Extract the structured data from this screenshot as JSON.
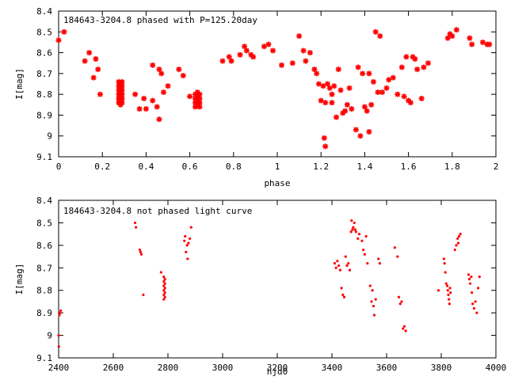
{
  "colors": {
    "marker": "#ff0000",
    "axis": "#000000",
    "background": "#ffffff"
  },
  "chart_data": [
    {
      "type": "scatter",
      "title": "184643-3204.8 phased with P=125.20day",
      "xlabel": "phase",
      "ylabel": "I[mag]",
      "xlim": [
        0,
        2
      ],
      "ylim": [
        9.1,
        8.4
      ],
      "y_inverted": true,
      "grid": false,
      "marker": "star",
      "xticks": [
        0,
        0.2,
        0.4,
        0.6,
        0.8,
        1,
        1.2,
        1.4,
        1.6,
        1.8,
        2
      ],
      "xtick_labels": [
        "0",
        "0.2",
        "0.4",
        "0.6",
        "0.8",
        "1",
        "1.2",
        "1.4",
        "1.6",
        "1.8",
        "2"
      ],
      "yticks": [
        8.4,
        8.5,
        8.6,
        8.7,
        8.8,
        8.9,
        9.0,
        9.1
      ],
      "ytick_labels": [
        "8.4",
        "8.5",
        "8.6",
        "8.7",
        "8.8",
        "8.9",
        "9",
        "9.1"
      ],
      "points": [
        [
          0.0,
          8.54
        ],
        [
          0.025,
          8.5
        ],
        [
          0.12,
          8.64
        ],
        [
          0.14,
          8.6
        ],
        [
          0.16,
          8.72
        ],
        [
          0.17,
          8.63
        ],
        [
          0.18,
          8.68
        ],
        [
          0.19,
          8.8
        ],
        [
          0.275,
          8.74
        ],
        [
          0.275,
          8.76
        ],
        [
          0.275,
          8.78
        ],
        [
          0.275,
          8.8
        ],
        [
          0.275,
          8.82
        ],
        [
          0.275,
          8.84
        ],
        [
          0.283,
          8.75
        ],
        [
          0.283,
          8.77
        ],
        [
          0.283,
          8.79
        ],
        [
          0.283,
          8.81
        ],
        [
          0.283,
          8.83
        ],
        [
          0.283,
          8.85
        ],
        [
          0.29,
          8.74
        ],
        [
          0.29,
          8.76
        ],
        [
          0.29,
          8.78
        ],
        [
          0.29,
          8.8
        ],
        [
          0.29,
          8.82
        ],
        [
          0.29,
          8.84
        ],
        [
          0.35,
          8.8
        ],
        [
          0.37,
          8.87
        ],
        [
          0.39,
          8.82
        ],
        [
          0.4,
          8.87
        ],
        [
          0.43,
          8.66
        ],
        [
          0.43,
          8.83
        ],
        [
          0.45,
          8.86
        ],
        [
          0.46,
          8.68
        ],
        [
          0.46,
          8.92
        ],
        [
          0.47,
          8.7
        ],
        [
          0.48,
          8.79
        ],
        [
          0.5,
          8.76
        ],
        [
          0.55,
          8.68
        ],
        [
          0.57,
          8.71
        ],
        [
          0.6,
          8.81
        ],
        [
          0.625,
          8.8
        ],
        [
          0.625,
          8.82
        ],
        [
          0.625,
          8.84
        ],
        [
          0.625,
          8.86
        ],
        [
          0.635,
          8.79
        ],
        [
          0.635,
          8.81
        ],
        [
          0.635,
          8.83
        ],
        [
          0.635,
          8.85
        ],
        [
          0.645,
          8.8
        ],
        [
          0.645,
          8.82
        ],
        [
          0.645,
          8.84
        ],
        [
          0.645,
          8.86
        ],
        [
          0.75,
          8.64
        ],
        [
          0.78,
          8.62
        ],
        [
          0.79,
          8.64
        ],
        [
          0.83,
          8.61
        ],
        [
          0.85,
          8.57
        ],
        [
          0.86,
          8.59
        ],
        [
          0.88,
          8.61
        ],
        [
          0.89,
          8.62
        ],
        [
          0.94,
          8.57
        ],
        [
          0.96,
          8.56
        ],
        [
          0.98,
          8.59
        ],
        [
          1.02,
          8.66
        ],
        [
          1.07,
          8.65
        ],
        [
          1.1,
          8.52
        ],
        [
          1.12,
          8.59
        ],
        [
          1.13,
          8.64
        ],
        [
          1.15,
          8.6
        ],
        [
          1.17,
          8.68
        ],
        [
          1.18,
          8.7
        ],
        [
          1.19,
          8.75
        ],
        [
          1.2,
          8.83
        ],
        [
          1.21,
          8.76
        ],
        [
          1.215,
          9.01
        ],
        [
          1.22,
          8.84
        ],
        [
          1.22,
          9.05
        ],
        [
          1.23,
          8.75
        ],
        [
          1.24,
          8.77
        ],
        [
          1.25,
          8.84
        ],
        [
          1.25,
          8.8
        ],
        [
          1.26,
          8.76
        ],
        [
          1.27,
          8.91
        ],
        [
          1.28,
          8.68
        ],
        [
          1.29,
          8.78
        ],
        [
          1.3,
          8.89
        ],
        [
          1.31,
          8.88
        ],
        [
          1.32,
          8.85
        ],
        [
          1.33,
          8.77
        ],
        [
          1.34,
          8.87
        ],
        [
          1.36,
          8.97
        ],
        [
          1.37,
          8.67
        ],
        [
          1.38,
          9.0
        ],
        [
          1.39,
          8.7
        ],
        [
          1.4,
          8.86
        ],
        [
          1.41,
          8.88
        ],
        [
          1.42,
          8.7
        ],
        [
          1.42,
          8.98
        ],
        [
          1.43,
          8.85
        ],
        [
          1.44,
          8.74
        ],
        [
          1.45,
          8.5
        ],
        [
          1.46,
          8.79
        ],
        [
          1.47,
          8.52
        ],
        [
          1.48,
          8.79
        ],
        [
          1.5,
          8.77
        ],
        [
          1.51,
          8.73
        ],
        [
          1.53,
          8.72
        ],
        [
          1.55,
          8.8
        ],
        [
          1.57,
          8.67
        ],
        [
          1.58,
          8.81
        ],
        [
          1.59,
          8.62
        ],
        [
          1.6,
          8.83
        ],
        [
          1.61,
          8.84
        ],
        [
          1.62,
          8.62
        ],
        [
          1.63,
          8.63
        ],
        [
          1.64,
          8.68
        ],
        [
          1.66,
          8.82
        ],
        [
          1.67,
          8.67
        ],
        [
          1.69,
          8.65
        ],
        [
          1.78,
          8.53
        ],
        [
          1.79,
          8.51
        ],
        [
          1.8,
          8.52
        ],
        [
          1.82,
          8.49
        ],
        [
          1.88,
          8.53
        ],
        [
          1.89,
          8.56
        ],
        [
          1.94,
          8.55
        ],
        [
          1.96,
          8.56
        ],
        [
          1.97,
          8.56
        ]
      ]
    },
    {
      "type": "scatter",
      "title": "184643-3204.8 not phased light curve",
      "xlabel": "hjd0",
      "ylabel": "I[mag]",
      "xlim": [
        2400,
        4000
      ],
      "ylim": [
        9.1,
        8.4
      ],
      "y_inverted": true,
      "grid": false,
      "marker": "dot",
      "xticks": [
        2400,
        2600,
        2800,
        3000,
        3200,
        3400,
        3600,
        3800,
        4000
      ],
      "xtick_labels": [
        "2400",
        "2600",
        "2800",
        "3000",
        "3200",
        "3400",
        "3600",
        "3800",
        "4000"
      ],
      "yticks": [
        8.4,
        8.5,
        8.6,
        8.7,
        8.8,
        8.9,
        9.0,
        9.1
      ],
      "ytick_labels": [
        "8.4",
        "8.5",
        "8.6",
        "8.7",
        "8.8",
        "8.9",
        "9",
        "9.1"
      ],
      "points": [
        [
          2400,
          9.0
        ],
        [
          2401,
          9.05
        ],
        [
          2403,
          8.91
        ],
        [
          2405,
          8.9
        ],
        [
          2408,
          8.89
        ],
        [
          2680,
          8.5
        ],
        [
          2683,
          8.52
        ],
        [
          2697,
          8.62
        ],
        [
          2700,
          8.63
        ],
        [
          2703,
          8.64
        ],
        [
          2710,
          8.82
        ],
        [
          2775,
          8.72
        ],
        [
          2785,
          8.74
        ],
        [
          2785,
          8.76
        ],
        [
          2785,
          8.78
        ],
        [
          2785,
          8.8
        ],
        [
          2785,
          8.82
        ],
        [
          2785,
          8.84
        ],
        [
          2789,
          8.75
        ],
        [
          2789,
          8.77
        ],
        [
          2789,
          8.79
        ],
        [
          2789,
          8.81
        ],
        [
          2789,
          8.83
        ],
        [
          2860,
          8.58
        ],
        [
          2863,
          8.56
        ],
        [
          2866,
          8.63
        ],
        [
          2870,
          8.6
        ],
        [
          2872,
          8.66
        ],
        [
          2875,
          8.59
        ],
        [
          2880,
          8.57
        ],
        [
          2885,
          8.52
        ],
        [
          3410,
          8.68
        ],
        [
          3415,
          8.7
        ],
        [
          3420,
          8.67
        ],
        [
          3425,
          8.69
        ],
        [
          3430,
          8.71
        ],
        [
          3435,
          8.79
        ],
        [
          3440,
          8.82
        ],
        [
          3445,
          8.83
        ],
        [
          3450,
          8.65
        ],
        [
          3455,
          8.69
        ],
        [
          3460,
          8.68
        ],
        [
          3465,
          8.71
        ],
        [
          3470,
          8.54
        ],
        [
          3472,
          8.49
        ],
        [
          3475,
          8.53
        ],
        [
          3478,
          8.52
        ],
        [
          3482,
          8.5
        ],
        [
          3485,
          8.53
        ],
        [
          3488,
          8.54
        ],
        [
          3495,
          8.57
        ],
        [
          3500,
          8.55
        ],
        [
          3510,
          8.58
        ],
        [
          3515,
          8.62
        ],
        [
          3520,
          8.64
        ],
        [
          3525,
          8.56
        ],
        [
          3530,
          8.68
        ],
        [
          3540,
          8.78
        ],
        [
          3545,
          8.85
        ],
        [
          3548,
          8.8
        ],
        [
          3552,
          8.87
        ],
        [
          3555,
          8.91
        ],
        [
          3560,
          8.84
        ],
        [
          3570,
          8.66
        ],
        [
          3575,
          8.68
        ],
        [
          3630,
          8.61
        ],
        [
          3640,
          8.65
        ],
        [
          3645,
          8.83
        ],
        [
          3650,
          8.86
        ],
        [
          3655,
          8.85
        ],
        [
          3660,
          8.97
        ],
        [
          3665,
          8.96
        ],
        [
          3670,
          8.98
        ],
        [
          3790,
          8.8
        ],
        [
          3810,
          8.66
        ],
        [
          3812,
          8.68
        ],
        [
          3815,
          8.72
        ],
        [
          3818,
          8.77
        ],
        [
          3822,
          8.78
        ],
        [
          3824,
          8.8
        ],
        [
          3826,
          8.82
        ],
        [
          3828,
          8.84
        ],
        [
          3830,
          8.86
        ],
        [
          3832,
          8.79
        ],
        [
          3834,
          8.81
        ],
        [
          3850,
          8.62
        ],
        [
          3855,
          8.6
        ],
        [
          3860,
          8.57
        ],
        [
          3862,
          8.59
        ],
        [
          3865,
          8.56
        ],
        [
          3870,
          8.55
        ],
        [
          3900,
          8.73
        ],
        [
          3903,
          8.75
        ],
        [
          3906,
          8.77
        ],
        [
          3910,
          8.74
        ],
        [
          3912,
          8.81
        ],
        [
          3915,
          8.86
        ],
        [
          3920,
          8.88
        ],
        [
          3925,
          8.85
        ],
        [
          3930,
          8.9
        ],
        [
          3935,
          8.79
        ],
        [
          3940,
          8.74
        ]
      ]
    }
  ]
}
